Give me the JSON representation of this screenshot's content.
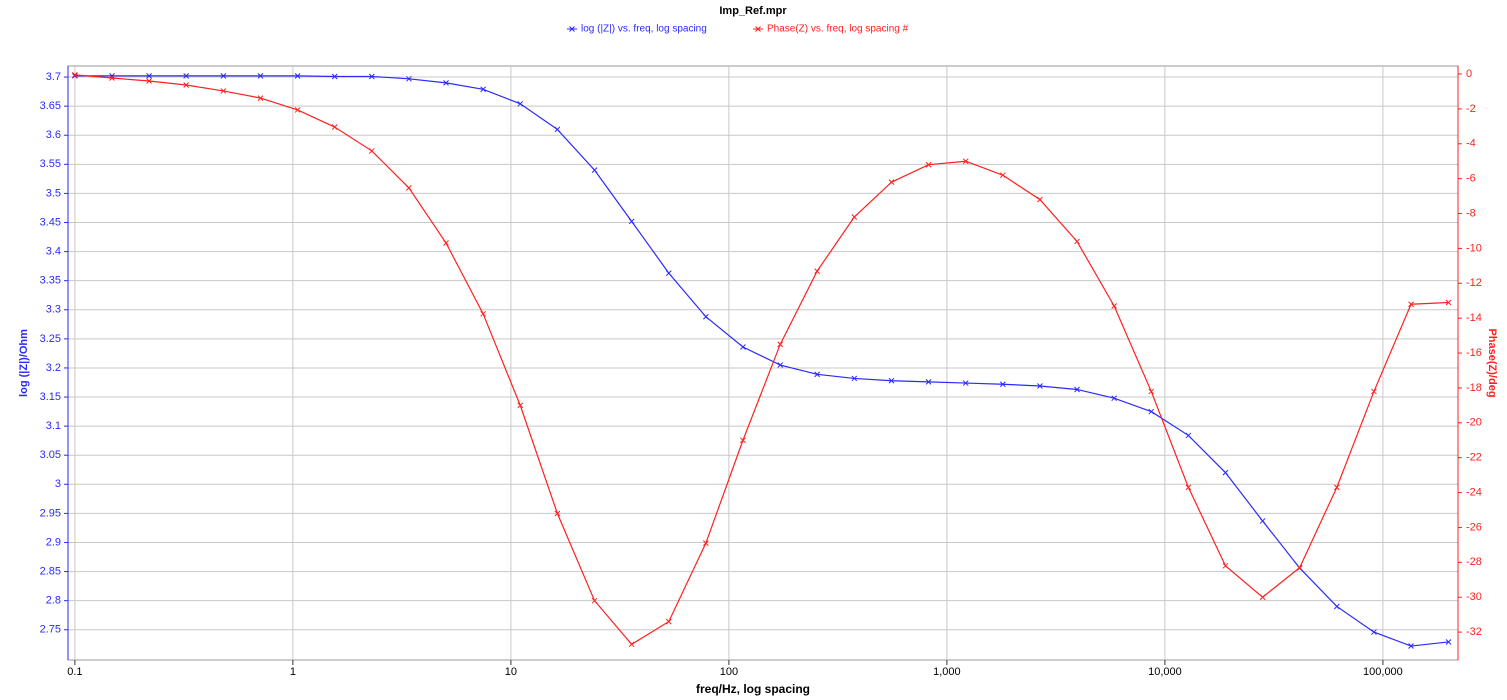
{
  "chart_data": {
    "type": "line",
    "title": "Imp_Ref.mpr",
    "x_label": "freq/Hz, log spacing",
    "y_label": "log (|Z|)/Ohm",
    "y2_label": "Phase(Z)/deg",
    "xscale": "log",
    "grid": true,
    "legend": "top",
    "x": [
      0.1,
      0.148,
      0.219,
      0.324,
      0.48,
      0.71,
      1.051,
      1.555,
      2.302,
      3.407,
      5.042,
      7.46,
      11.04,
      16.34,
      24.2,
      35.8,
      53,
      78.4,
      116,
      172,
      254,
      376,
      557,
      824,
      1220,
      1805,
      2671,
      3953,
      5850,
      8658,
      12813,
      18962,
      28063,
      41530,
      61460,
      90960,
      134600,
      200000
    ],
    "xlim": [
      0.093,
      221000
    ],
    "xticks": [
      0.1,
      1,
      10,
      100,
      {
        "value": 1000,
        "label": "1,000"
      },
      {
        "value": 10000,
        "label": "10,000"
      },
      {
        "value": 100000,
        "label": "100,000"
      }
    ],
    "ylim": [
      2.698,
      3.719
    ],
    "yticks": [
      2.75,
      2.8,
      2.85,
      2.9,
      2.95,
      3,
      3.05,
      3.1,
      3.15,
      3.2,
      3.25,
      3.3,
      3.35,
      3.4,
      3.45,
      3.5,
      3.55,
      3.6,
      3.65,
      3.7
    ],
    "y2lim": [
      -33.6,
      0.46
    ],
    "y2ticks": [
      0,
      -2,
      -4,
      -6,
      -8,
      -10,
      -12,
      -14,
      -16,
      -18,
      -20,
      -22,
      -24,
      -26,
      -28,
      -30,
      -32
    ],
    "series": [
      {
        "name": "log (|Z|) vs. freq, log spacing",
        "color": "#2a2aff",
        "axis": "y",
        "values": [
          3.702,
          3.702,
          3.702,
          3.702,
          3.702,
          3.702,
          3.702,
          3.701,
          3.701,
          3.697,
          3.69,
          3.679,
          3.654,
          3.61,
          3.54,
          3.452,
          3.363,
          3.288,
          3.236,
          3.205,
          3.189,
          3.182,
          3.178,
          3.176,
          3.174,
          3.172,
          3.169,
          3.163,
          3.148,
          3.125,
          3.084,
          3.02,
          2.937,
          2.856,
          2.79,
          2.746,
          2.722,
          2.729
        ]
      },
      {
        "name": "Phase(Z) vs. freq, log spacing #",
        "color": "#ff2020",
        "axis": "y2",
        "values": [
          -0.05,
          -0.23,
          -0.4,
          -0.63,
          -0.97,
          -1.38,
          -2.06,
          -3.04,
          -4.41,
          -6.53,
          -9.69,
          -13.75,
          -19,
          -25.2,
          -30.2,
          -32.7,
          -31.4,
          -26.9,
          -21,
          -15.5,
          -11.3,
          -8.2,
          -6.2,
          -5.2,
          -5,
          -5.8,
          -7.2,
          -9.6,
          -13.3,
          -18.2,
          -23.7,
          -28.2,
          -30,
          -28.3,
          -23.7,
          -18.2,
          -13.2,
          -13.1
        ]
      }
    ]
  }
}
